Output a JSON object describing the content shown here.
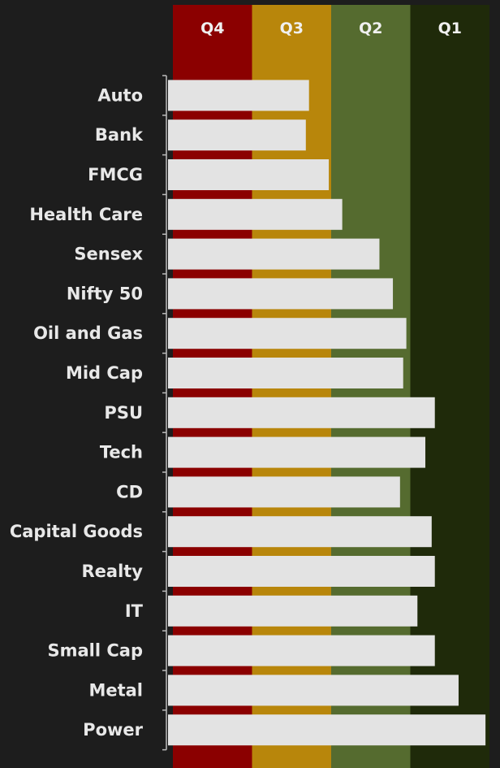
{
  "chart_data": {
    "type": "bar",
    "orientation": "horizontal",
    "bands": [
      {
        "label": "Q4",
        "color": "#8b0000"
      },
      {
        "label": "Q3",
        "color": "#b8860b"
      },
      {
        "label": "Q2",
        "color": "#556b2f"
      },
      {
        "label": "Q1",
        "color": "#1f2a0a"
      }
    ],
    "categories": [
      "Auto",
      "Bank",
      "FMCG",
      "Health Care",
      "Sensex",
      "Nifty 50",
      "Oil and Gas",
      "Mid Cap",
      "PSU",
      "Tech",
      "CD",
      "Capital Goods",
      "Realty",
      "IT",
      "Small Cap",
      "Metal",
      "Power"
    ],
    "values": [
      1.72,
      1.68,
      1.97,
      2.14,
      2.61,
      2.78,
      2.95,
      2.91,
      3.31,
      3.19,
      2.87,
      3.27,
      3.31,
      3.09,
      3.31,
      3.61,
      3.95
    ],
    "xlim": [
      0,
      4
    ],
    "bar_color": "#e3e3e3",
    "title": "",
    "xlabel": "",
    "ylabel": ""
  }
}
